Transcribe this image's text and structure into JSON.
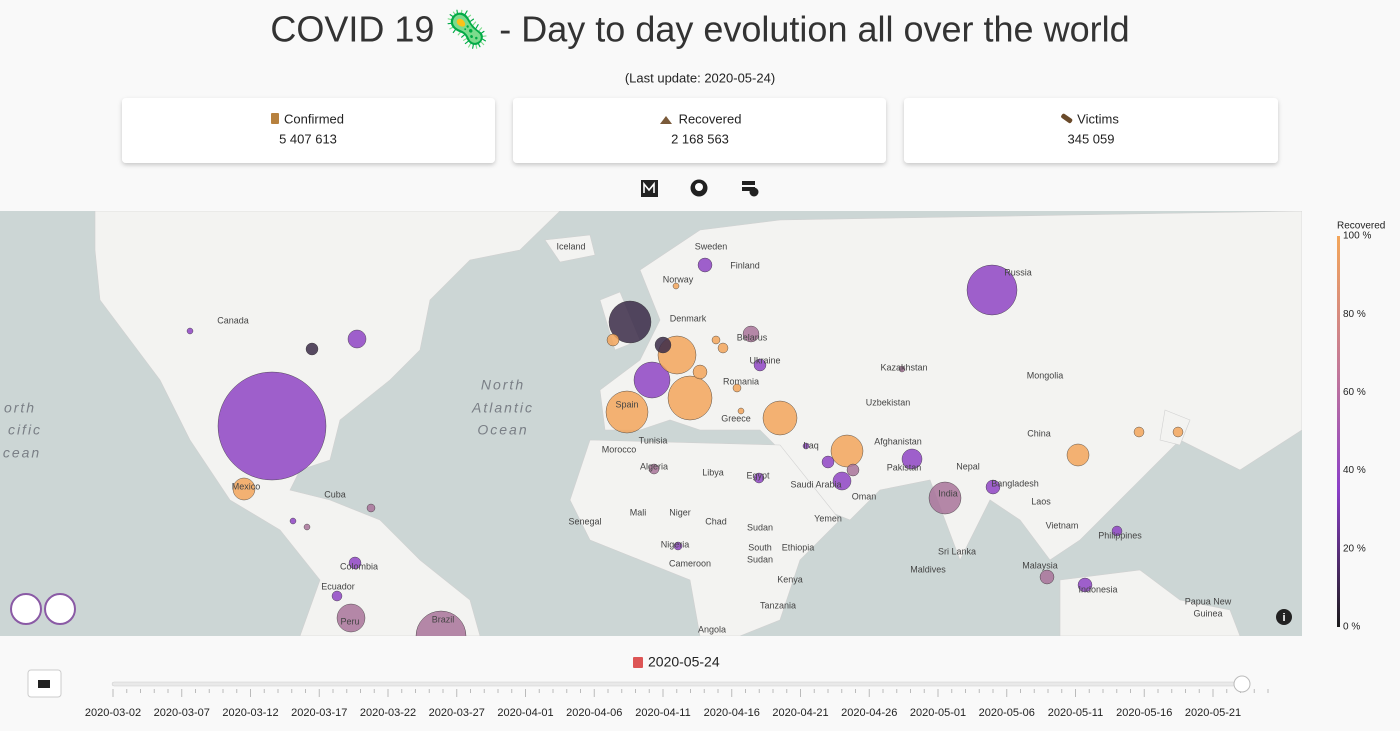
{
  "header": {
    "title": "COVID 19 🦠 - Day to day evolution all over the world",
    "last_update": "(Last update: 2020-05-24)"
  },
  "cards": [
    {
      "label": "Confirmed",
      "value": "5 407 613"
    },
    {
      "label": "Recovered",
      "value": "2 168 563"
    },
    {
      "label": "Victims",
      "value": "345 059"
    }
  ],
  "map": {
    "labels": [
      "Iceland",
      "Sweden",
      "Finland",
      "Norway",
      "Canada",
      "Denmark",
      "Belarus",
      "Ukraine",
      "Kazakhstan",
      "Mongolia",
      "Romania",
      "North",
      "Atlantic",
      "Ocean",
      "Uzbekistan",
      "Spain",
      "Greece",
      "China",
      "Afghanistan",
      "Tunisia",
      "Iraq",
      "Morocco",
      "Pakistan",
      "Nepal",
      "Algeria",
      "Libya",
      "Egypt",
      "Bangladesh",
      "Mexico",
      "Cuba",
      "Saudi Arabia",
      "Oman",
      "India",
      "Laos",
      "Mali",
      "Niger",
      "Chad",
      "Senegal",
      "Yemen",
      "Sudan",
      "Vietnam",
      "Philippines",
      "Nigeria",
      "South",
      "Sudan",
      "Ethiopia",
      "Sri Lanka",
      "Colombia",
      "Cameroon",
      "Malaysia",
      "Maldives",
      "Kenya",
      "Ecuador",
      "Indonesia",
      "Tanzania",
      "Papua New",
      "Guinea",
      "Peru",
      "Brazil",
      "Angola",
      "Russia",
      "orth",
      "cific",
      "cean"
    ],
    "colorbar": {
      "title": "Recovered",
      "ticks": [
        "100 %",
        "80 %",
        "60 %",
        "40 %",
        "20 %",
        "0 %"
      ]
    }
  },
  "timeline": {
    "current": "2020-05-24",
    "ticks": [
      "2020-03-02",
      "2020-03-07",
      "2020-03-12",
      "2020-03-17",
      "2020-03-22",
      "2020-03-27",
      "2020-04-01",
      "2020-04-06",
      "2020-04-11",
      "2020-04-16",
      "2020-04-21",
      "2020-04-26",
      "2020-05-01",
      "2020-05-06",
      "2020-05-11",
      "2020-05-16",
      "2020-05-21"
    ]
  }
}
